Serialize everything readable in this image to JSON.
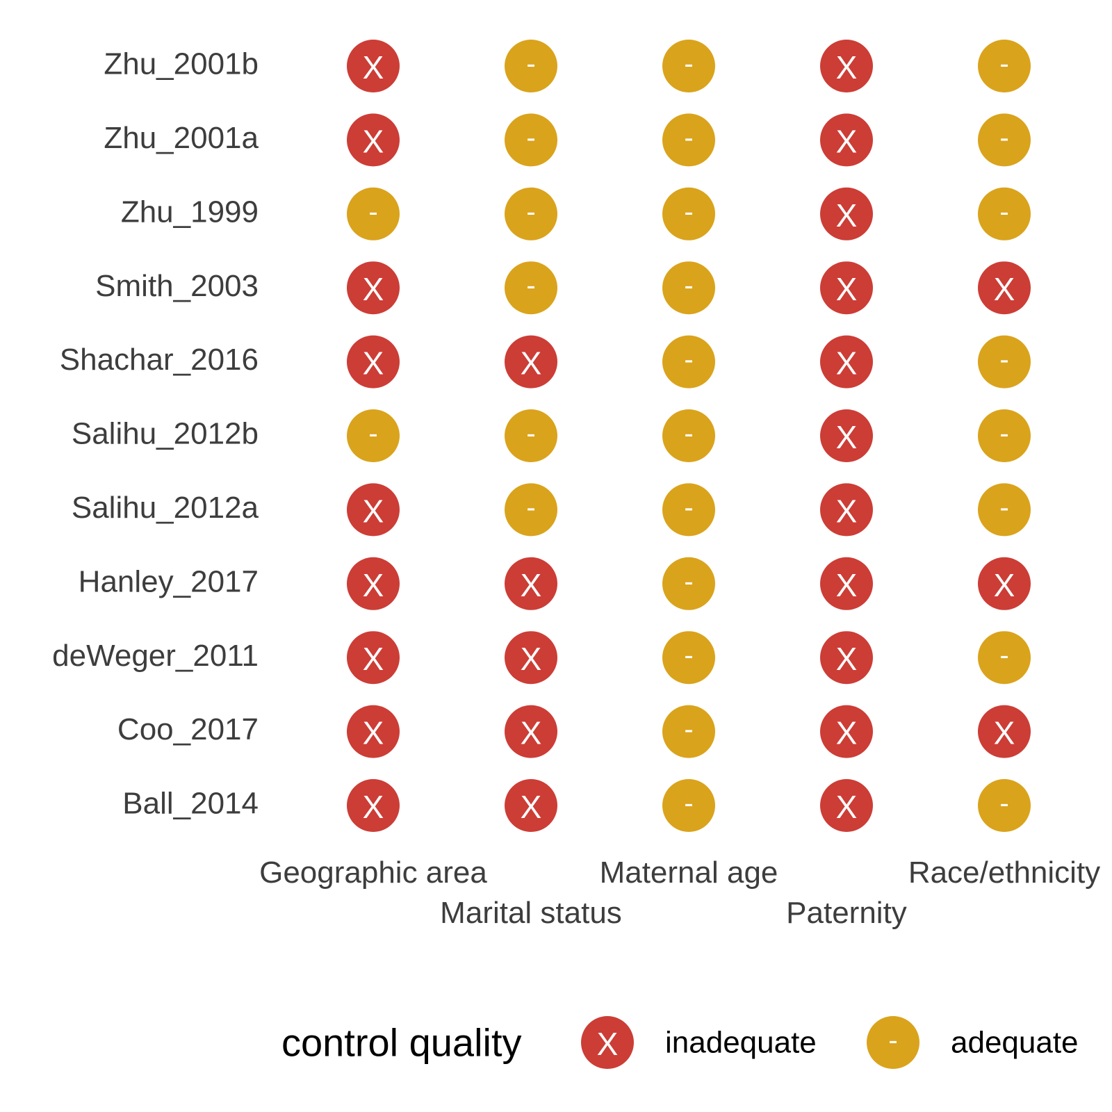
{
  "chart_data": {
    "type": "heatmap",
    "rows": [
      "Zhu_2001b",
      "Zhu_2001a",
      "Zhu_1999",
      "Smith_2003",
      "Shachar_2016",
      "Salihu_2012b",
      "Salihu_2012a",
      "Hanley_2017",
      "deWeger_2011",
      "Coo_2017",
      "Ball_2014"
    ],
    "columns": [
      "Geographic area",
      "Marital status",
      "Maternal age",
      "Paternity",
      "Race/ethnicity"
    ],
    "values": [
      [
        "inadequate",
        "adequate",
        "adequate",
        "inadequate",
        "adequate"
      ],
      [
        "inadequate",
        "adequate",
        "adequate",
        "inadequate",
        "adequate"
      ],
      [
        "adequate",
        "adequate",
        "adequate",
        "inadequate",
        "adequate"
      ],
      [
        "inadequate",
        "adequate",
        "adequate",
        "inadequate",
        "inadequate"
      ],
      [
        "inadequate",
        "inadequate",
        "adequate",
        "inadequate",
        "adequate"
      ],
      [
        "adequate",
        "adequate",
        "adequate",
        "inadequate",
        "adequate"
      ],
      [
        "inadequate",
        "adequate",
        "adequate",
        "inadequate",
        "adequate"
      ],
      [
        "inadequate",
        "inadequate",
        "adequate",
        "inadequate",
        "inadequate"
      ],
      [
        "inadequate",
        "inadequate",
        "adequate",
        "inadequate",
        "adequate"
      ],
      [
        "inadequate",
        "inadequate",
        "adequate",
        "inadequate",
        "inadequate"
      ],
      [
        "inadequate",
        "inadequate",
        "adequate",
        "inadequate",
        "adequate"
      ]
    ],
    "legend": {
      "title": "control quality",
      "position": "bottom",
      "items": [
        {
          "key": "inadequate",
          "label": "inadequate",
          "symbol": "X",
          "color": "#cc3d36"
        },
        {
          "key": "adequate",
          "label": "adequate",
          "symbol": "-",
          "color": "#daa31c"
        }
      ]
    },
    "grid": false
  }
}
